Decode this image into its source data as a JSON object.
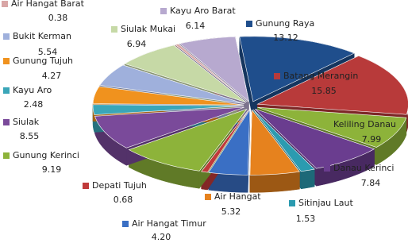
{
  "chart_data": {
    "type": "pie3d",
    "categories": [
      "Gunung Raya",
      "Batang Merangin",
      "Keliling Danau",
      "Danau Kerinci",
      "Sitinjau Laut",
      "Air Hangat",
      "Air Hangat Timur",
      "Depati Tujuh",
      "Gunung Kerinci",
      "Siulak",
      "Kayu Aro",
      "Gunung Tujuh",
      "Bukit Kerman",
      "Siulak Mukai",
      "Air Hangat Barat",
      "Kayu Aro Barat"
    ],
    "values": [
      13.12,
      15.85,
      7.99,
      7.84,
      1.53,
      5.32,
      4.2,
      0.68,
      9.19,
      8.55,
      2.48,
      4.27,
      5.54,
      6.94,
      0.38,
      6.14
    ],
    "value_labels": [
      "13.12",
      "15.85",
      "7.99",
      "7.84",
      "1.53",
      "5.32",
      "4.20",
      "0.68",
      "9.19",
      "8.55",
      "2.48",
      "4.27",
      "5.54",
      "6.94",
      "0.38",
      "6.14"
    ],
    "colors": [
      "#1f4e8c",
      "#b83a3a",
      "#8db33a",
      "#6a3d8f",
      "#2b9bb0",
      "#e6821e",
      "#3a6fc4",
      "#c03a3a",
      "#8db33a",
      "#7a4a9a",
      "#3aa6b8",
      "#f0921e",
      "#9fb0dc",
      "#c6d9a6",
      "#d9a6a6",
      "#b7a9cf"
    ]
  }
}
